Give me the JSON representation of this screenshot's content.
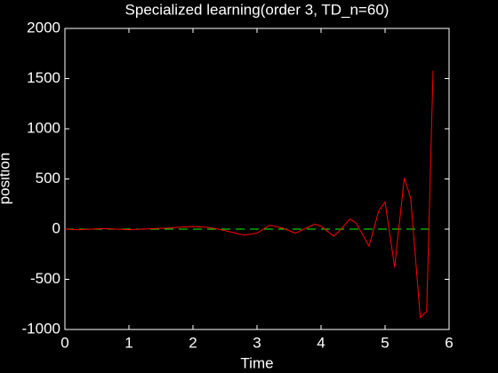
{
  "chart_data": {
    "type": "line",
    "title": "Specialized learning(order 3, TD_n=60)",
    "xlabel": "Time",
    "ylabel": "position",
    "xlim": [
      0,
      6
    ],
    "xticks": [
      0,
      1,
      2,
      3,
      4,
      5,
      6
    ],
    "ylim": [
      -1000,
      2000
    ],
    "yticks": [
      -1000,
      -500,
      0,
      500,
      1000,
      1500,
      2000
    ],
    "grid": false,
    "series": [
      {
        "color": "#ff0000",
        "dash": false,
        "x": [
          0,
          0.2,
          0.4,
          0.6,
          0.8,
          1.0,
          1.2,
          1.4,
          1.6,
          1.8,
          2.0,
          2.2,
          2.4,
          2.6,
          2.8,
          3.0,
          3.2,
          3.4,
          3.6,
          3.8,
          3.9,
          4.0,
          4.2,
          4.3,
          4.45,
          4.55,
          4.75,
          4.9,
          5.0,
          5.15,
          5.3,
          5.4,
          5.55,
          5.65,
          5.75
        ],
        "values": [
          0,
          -5,
          0,
          5,
          0,
          -5,
          0,
          5,
          10,
          20,
          25,
          20,
          0,
          -30,
          -60,
          -40,
          40,
          10,
          -40,
          20,
          50,
          30,
          -70,
          -10,
          100,
          60,
          -170,
          180,
          270,
          -380,
          510,
          310,
          -880,
          -820,
          1580
        ]
      },
      {
        "color": "#00ff00",
        "dash": true,
        "x": [
          0,
          5.75
        ],
        "values": [
          0,
          0
        ]
      }
    ]
  }
}
